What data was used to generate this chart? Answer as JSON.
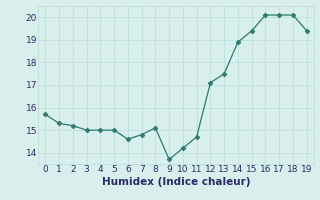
{
  "x": [
    0,
    1,
    2,
    3,
    4,
    5,
    6,
    7,
    8,
    9,
    10,
    11,
    12,
    13,
    14,
    15,
    16,
    17,
    18,
    19
  ],
  "y": [
    15.7,
    15.3,
    15.2,
    15.0,
    15.0,
    15.0,
    14.6,
    14.8,
    15.1,
    13.7,
    14.2,
    14.7,
    17.1,
    17.5,
    18.9,
    19.4,
    20.1,
    20.1,
    20.1,
    19.4
  ],
  "xlabel": "Humidex (Indice chaleur)",
  "xlim": [
    -0.5,
    19.5
  ],
  "ylim": [
    13.5,
    20.5
  ],
  "yticks": [
    14,
    15,
    16,
    17,
    18,
    19,
    20
  ],
  "xticks": [
    0,
    1,
    2,
    3,
    4,
    5,
    6,
    7,
    8,
    9,
    10,
    11,
    12,
    13,
    14,
    15,
    16,
    17,
    18,
    19
  ],
  "line_color": "#2d7a6e",
  "marker": "D",
  "marker_size": 2.5,
  "bg_color": "#d8f0ec",
  "grid_color": "#b8ddd8",
  "font_color": "#2a2a6a",
  "label_fontsize": 7.5,
  "tick_fontsize": 6.5
}
